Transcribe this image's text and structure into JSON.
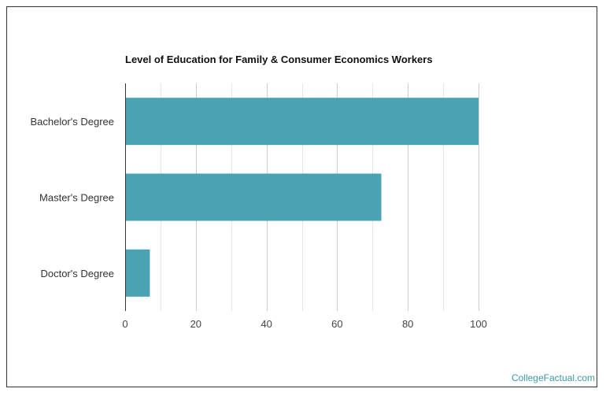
{
  "chart_data": {
    "type": "bar",
    "orientation": "horizontal",
    "title": "Level of Education for Family & Consumer Economics Workers",
    "categories": [
      "Bachelor's Degree",
      "Master's Degree",
      "Doctor's Degree"
    ],
    "values": [
      100,
      72.5,
      7
    ],
    "xlim": [
      0,
      100
    ],
    "xticks": [
      0,
      20,
      40,
      60,
      80,
      100
    ],
    "grid": true,
    "bar_color": "#4aa3b5"
  },
  "watermark": "CollegeFactual.com"
}
